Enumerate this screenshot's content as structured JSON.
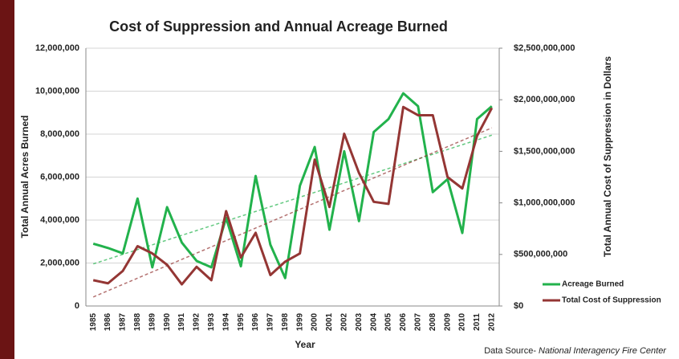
{
  "chart_data": {
    "type": "line",
    "title": "Cost of Suppression and Annual Acreage Burned",
    "x_label": "Year",
    "y_label": "Total Annual Acres Burned",
    "y2_label": "Total Annual Cost of Suppression in Dollars",
    "data_source_label": "Data Source-",
    "data_source": "National Interagency Fire Center",
    "categories": [
      "1985",
      "1986",
      "1987",
      "1988",
      "1989",
      "1990",
      "1991",
      "1992",
      "1993",
      "1994",
      "1995",
      "1996",
      "1997",
      "1998",
      "1999",
      "2000",
      "2001",
      "2002",
      "2003",
      "2004",
      "2005",
      "2006",
      "2007",
      "2008",
      "2009",
      "2010",
      "2011",
      "2012"
    ],
    "series": [
      {
        "name": "Acreage Burned",
        "color": "#22b24c",
        "trendline": true,
        "values": [
          2900000,
          2700000,
          2450000,
          5000000,
          1800000,
          4600000,
          2950000,
          2100000,
          1800000,
          4100000,
          1850000,
          6050000,
          2850000,
          1300000,
          5600000,
          7400000,
          3550000,
          7200000,
          3950000,
          8100000,
          8700000,
          9900000,
          9300000,
          5300000,
          5900000,
          3400000,
          8700000,
          9300000
        ]
      },
      {
        "name": "Total Cost of Suppression",
        "color": "#943634",
        "axis": "y2",
        "trendline": true,
        "values": [
          250000000,
          220000000,
          340000000,
          580000000,
          510000000,
          400000000,
          210000000,
          380000000,
          250000000,
          920000000,
          470000000,
          710000000,
          300000000,
          430000000,
          510000000,
          1420000000,
          960000000,
          1670000000,
          1290000000,
          1010000000,
          990000000,
          1930000000,
          1850000000,
          1850000000,
          1250000000,
          1140000000,
          1650000000,
          1920000000
        ]
      }
    ],
    "ylim": [
      0,
      12000000
    ],
    "yticks": [
      {
        "value": 0,
        "label": "0"
      },
      {
        "value": 2000000,
        "label": "2,000,000"
      },
      {
        "value": 4000000,
        "label": "4,000,000"
      },
      {
        "value": 6000000,
        "label": "6,000,000"
      },
      {
        "value": 8000000,
        "label": "8,000,000"
      },
      {
        "value": 10000000,
        "label": "10,000,000"
      },
      {
        "value": 12000000,
        "label": "12,000,000"
      }
    ],
    "y2lim": [
      0,
      2500000000
    ],
    "y2ticks": [
      {
        "value": 0,
        "label": "$0"
      },
      {
        "value": 500000000,
        "label": "$500,000,000"
      },
      {
        "value": 1000000000,
        "label": "$1,000,000,000"
      },
      {
        "value": 1500000000,
        "label": "$1,500,000,000"
      },
      {
        "value": 2000000000,
        "label": "$2,000,000,000"
      },
      {
        "value": 2500000000,
        "label": "$2,500,000,000"
      }
    ],
    "grid": true,
    "legend": "lower right"
  }
}
